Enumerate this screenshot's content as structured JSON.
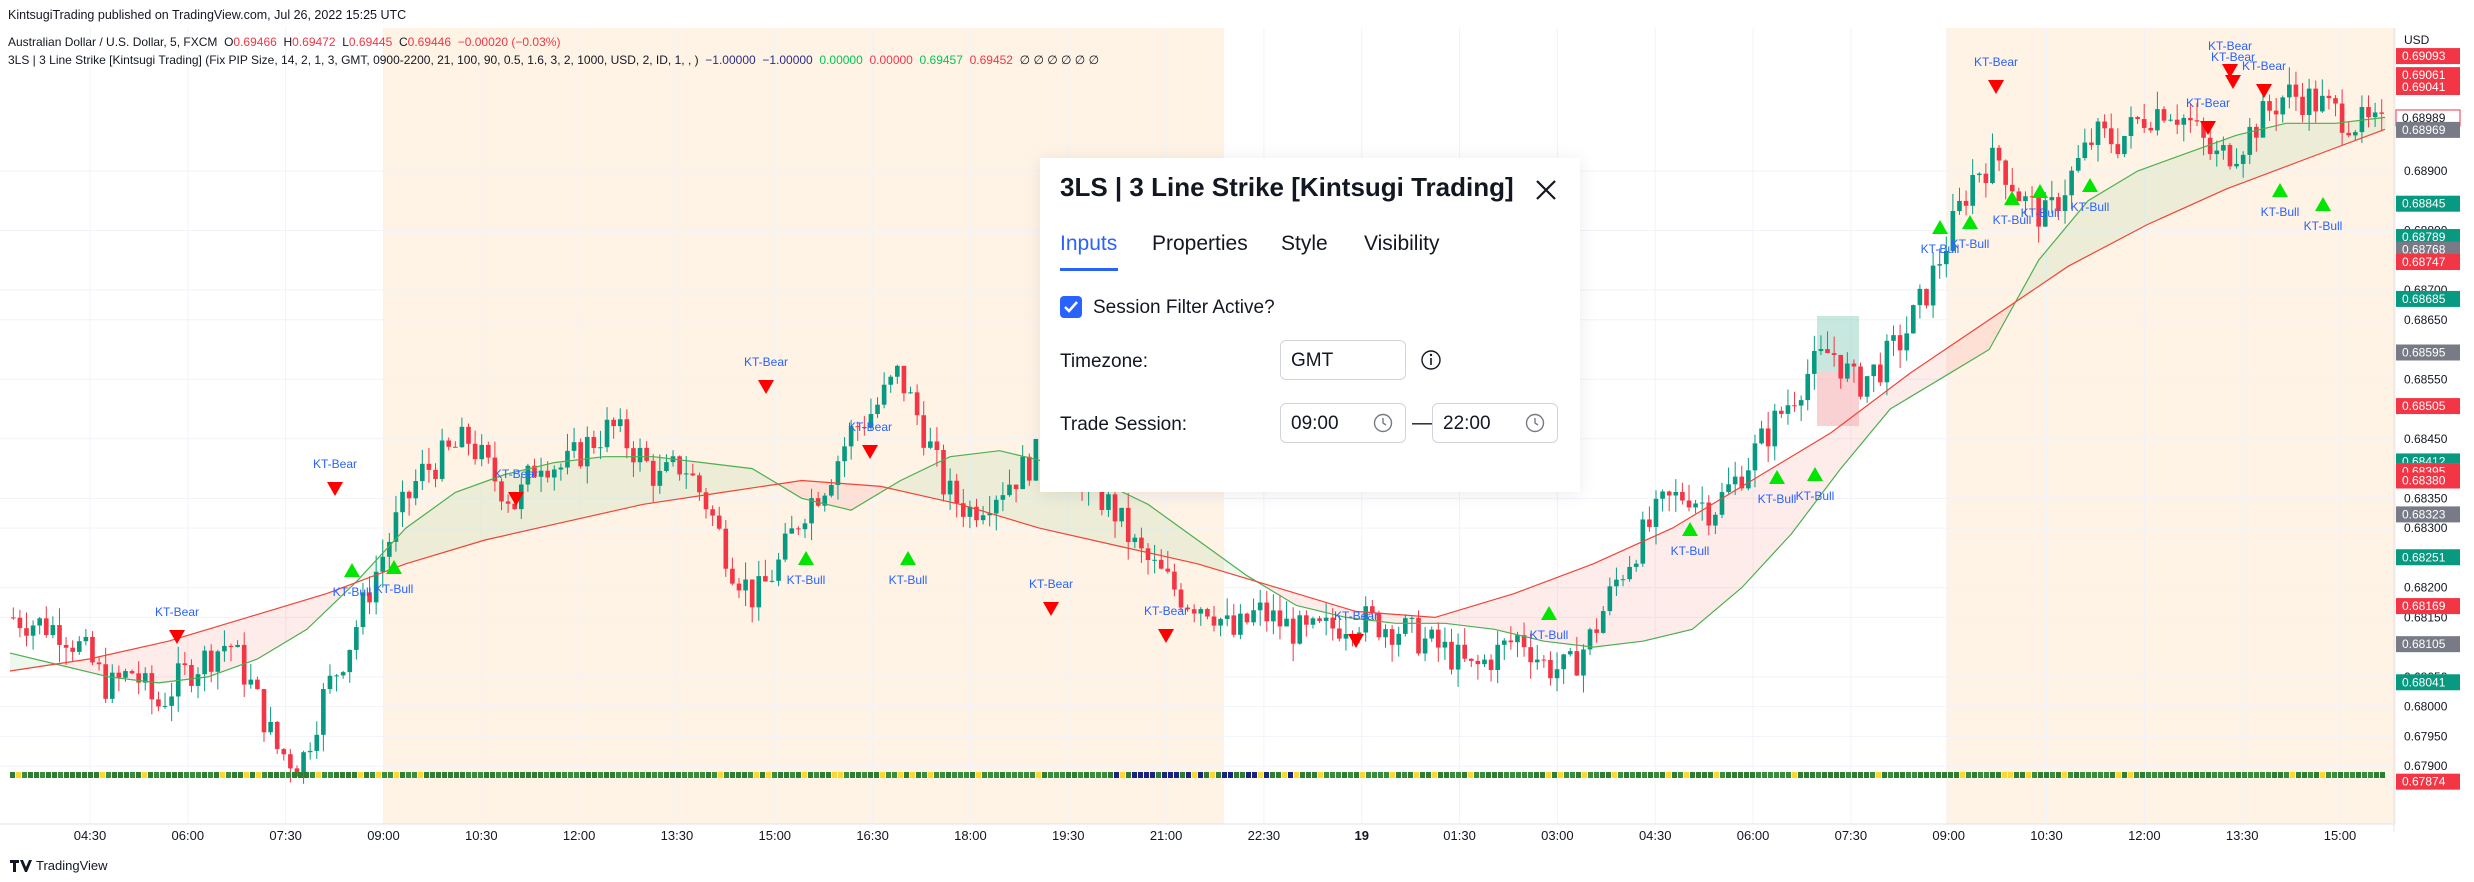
{
  "header": {
    "published": "KintsugiTrading published on TradingView.com, Jul 26, 2022 15:25 UTC",
    "symbol": "Australian Dollar / U.S. Dollar, 5, FXCM",
    "ohlc": {
      "o_label": "O",
      "o": "0.69466",
      "h_label": "H",
      "h": "0.69472",
      "l_label": "L",
      "l": "0.69445",
      "c_label": "C",
      "c": "0.69446",
      "change": "−0.00020 (−0.03%)"
    },
    "indicator": {
      "title": "3LS | 3 Line Strike [Kintsugi Trading] (Fix PIP Size, 14, 2, 1, 3, GMT, 0900-2200, 21, 100, 90, 0.5, 1.6, 3, 2, 1000, USD, 2, ID, 1, , )",
      "v1": "−1.00000",
      "v2": "−1.00000",
      "v3": "0.00000",
      "v4": "0.00000",
      "v5": "0.69457",
      "v6": "0.69452",
      "tail": "∅ ∅ ∅ ∅ ∅ ∅"
    }
  },
  "footer": {
    "brand": "TradingView"
  },
  "price_axis": {
    "currency": "USD",
    "ticks": [
      "0.68900",
      "0.68800",
      "0.68700",
      "0.68650",
      "0.68550",
      "0.68450",
      "0.68350",
      "0.68300",
      "0.68200",
      "0.68150",
      "0.68050",
      "0.68000",
      "0.67950",
      "0.67900"
    ],
    "badges": [
      {
        "v": "0.69093",
        "c": "#f23645"
      },
      {
        "v": "0.69061",
        "c": "#f23645"
      },
      {
        "v": "0.69041",
        "c": "#f23645"
      },
      {
        "v": "0.68989",
        "c": "#ffffff"
      },
      {
        "v": "0.68969",
        "c": "#787b86"
      },
      {
        "v": "0.68845",
        "c": "#089981"
      },
      {
        "v": "0.68789",
        "c": "#089981"
      },
      {
        "v": "0.68768",
        "c": "#787b86"
      },
      {
        "v": "0.68747",
        "c": "#f23645"
      },
      {
        "v": "0.68685",
        "c": "#089981"
      },
      {
        "v": "0.68595",
        "c": "#787b86"
      },
      {
        "v": "0.68505",
        "c": "#f23645"
      },
      {
        "v": "0.68412",
        "c": "#089981"
      },
      {
        "v": "0.68396",
        "c": "#787b86"
      },
      {
        "v": "0.68395",
        "c": "#f23645"
      },
      {
        "v": "0.68380",
        "c": "#f23645"
      },
      {
        "v": "0.68323",
        "c": "#787b86"
      },
      {
        "v": "0.68251",
        "c": "#089981"
      },
      {
        "v": "0.68169",
        "c": "#f23645"
      },
      {
        "v": "0.68105",
        "c": "#787b86"
      },
      {
        "v": "0.68041",
        "c": "#089981"
      },
      {
        "v": "0.67874",
        "c": "#f23645"
      }
    ]
  },
  "time_axis": [
    "04:30",
    "06:00",
    "07:30",
    "09:00",
    "10:30",
    "12:00",
    "13:30",
    "15:00",
    "16:30",
    "18:00",
    "19:30",
    "21:00",
    "22:30",
    "19",
    "01:30",
    "03:00",
    "04:30",
    "06:00",
    "07:30",
    "09:00",
    "10:30",
    "12:00",
    "13:30",
    "15:00"
  ],
  "signal_labels": {
    "bear": "KT-Bear",
    "bull": "KT-Bull"
  },
  "chart_data": {
    "type": "candlestick",
    "symbol": "AUDUSD",
    "interval": "5",
    "y_range": [
      0.6786,
      0.6912
    ],
    "closes": [
      0.6815,
      0.6814,
      0.6813,
      0.6809,
      0.6803,
      0.6806,
      0.68,
      0.6805,
      0.6808,
      0.6811,
      0.6803,
      0.6793,
      0.679,
      0.6802,
      0.681,
      0.6821,
      0.6831,
      0.6839,
      0.6842,
      0.6845,
      0.6839,
      0.6834,
      0.6842,
      0.684,
      0.6844,
      0.6847,
      0.6843,
      0.6838,
      0.6841,
      0.6834,
      0.6824,
      0.6818,
      0.6824,
      0.6833,
      0.6838,
      0.6846,
      0.685,
      0.6856,
      0.6847,
      0.6836,
      0.6833,
      0.6836,
      0.6839,
      0.6843,
      0.6841,
      0.6837,
      0.6833,
      0.6826,
      0.6822,
      0.6818,
      0.6817,
      0.6812,
      0.6816,
      0.6814,
      0.6812,
      0.6813,
      0.6815,
      0.6814,
      0.6813,
      0.6811,
      0.6809,
      0.6806,
      0.6809,
      0.6812,
      0.6807,
      0.6806,
      0.6812,
      0.6821,
      0.6828,
      0.6834,
      0.6836,
      0.6833,
      0.6838,
      0.6844,
      0.685,
      0.6856,
      0.686,
      0.6854,
      0.6857,
      0.6862,
      0.687,
      0.688,
      0.689,
      0.6892,
      0.6885,
      0.6882,
      0.6889,
      0.6896,
      0.6895,
      0.6899,
      0.6901,
      0.6898,
      0.6892,
      0.6894,
      0.6899,
      0.6903,
      0.6902,
      0.69,
      0.6898,
      0.6897
    ],
    "ema21": [
      0.6809,
      0.6807,
      0.6805,
      0.6804,
      0.6805,
      0.6808,
      0.6813,
      0.6821,
      0.683,
      0.6836,
      0.6839,
      0.6841,
      0.6842,
      0.6842,
      0.6841,
      0.684,
      0.6835,
      0.6833,
      0.6838,
      0.6842,
      0.6843,
      0.6841,
      0.6838,
      0.6834,
      0.6828,
      0.6822,
      0.6817,
      0.6815,
      0.6814,
      0.6814,
      0.6813,
      0.6811,
      0.681,
      0.6811,
      0.6813,
      0.682,
      0.6829,
      0.684,
      0.685,
      0.6855,
      0.686,
      0.6875,
      0.6885,
      0.689,
      0.6893,
      0.6896,
      0.6898,
      0.6898,
      0.6899
    ],
    "ema100": [
      0.6806,
      0.6808,
      0.6811,
      0.6815,
      0.6819,
      0.6824,
      0.6828,
      0.6831,
      0.6834,
      0.6836,
      0.6838,
      0.6837,
      0.6834,
      0.683,
      0.6827,
      0.6824,
      0.682,
      0.6816,
      0.6815,
      0.6819,
      0.6824,
      0.683,
      0.6838,
      0.6846,
      0.6856,
      0.6865,
      0.6874,
      0.6881,
      0.6887,
      0.6892,
      0.6897
    ]
  }
}
